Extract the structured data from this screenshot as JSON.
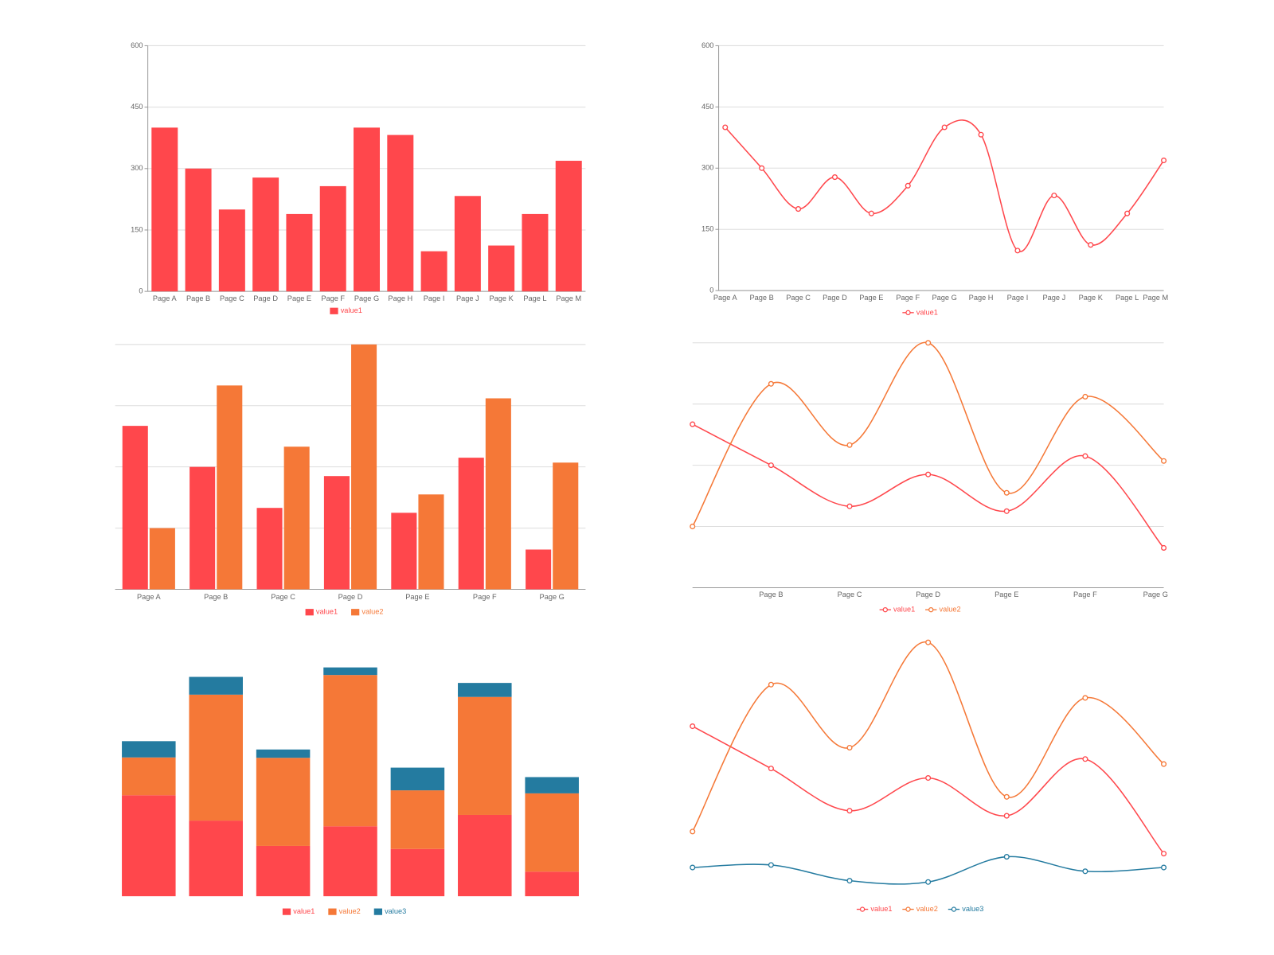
{
  "chart_data": [
    {
      "type": "bar",
      "categories": [
        "Page A",
        "Page B",
        "Page C",
        "Page D",
        "Page E",
        "Page F",
        "Page G",
        "Page H",
        "Page I",
        "Page J",
        "Page K",
        "Page L",
        "Page M"
      ],
      "series": [
        {
          "name": "value1",
          "color": "#ff474c",
          "values": [
            400,
            300,
            200,
            278,
            189,
            257,
            400,
            382,
            98,
            233,
            112,
            189,
            319
          ]
        }
      ],
      "ylim": [
        0,
        600
      ],
      "yticks": [
        0,
        150,
        300,
        450,
        600
      ],
      "grid": true,
      "tick_labels": true
    },
    {
      "type": "bar",
      "categories": [
        "Page A",
        "Page B",
        "Page C",
        "Page D",
        "Page E",
        "Page F",
        "Page G"
      ],
      "series": [
        {
          "name": "value1",
          "color": "#ff474c",
          "values": [
            267,
            200,
            133,
            185,
            125,
            215,
            65
          ]
        },
        {
          "name": "value2",
          "color": "#f57837",
          "values": [
            100,
            333,
            233,
            400,
            155,
            312,
            207
          ]
        }
      ],
      "ylim": [
        0,
        400
      ],
      "yticks": [
        0,
        100,
        200,
        300,
        400
      ],
      "grid": true,
      "tick_labels": false
    },
    {
      "type": "bar",
      "stacked": true,
      "series": [
        {
          "name": "value1",
          "color": "#ff474c",
          "values": [
            267,
            200,
            133,
            185,
            125,
            215,
            65
          ]
        },
        {
          "name": "value2",
          "color": "#f57837",
          "values": [
            100,
            333,
            233,
            400,
            155,
            312,
            207
          ]
        },
        {
          "name": "value3",
          "color": "#247ba0",
          "values": [
            43,
            47,
            22,
            20,
            60,
            37,
            43
          ]
        }
      ],
      "ylim": [
        0,
        600
      ]
    },
    {
      "type": "line",
      "categories": [
        "Page A",
        "Page B",
        "Page C",
        "Page D",
        "Page E",
        "Page F",
        "Page G",
        "Page H",
        "Page I",
        "Page J",
        "Page K",
        "Page L",
        "Page M"
      ],
      "series": [
        {
          "name": "value1",
          "color": "#ff474c",
          "values": [
            400,
            300,
            200,
            278,
            189,
            257,
            400,
            382,
            98,
            233,
            112,
            189,
            319
          ]
        }
      ],
      "ylim": [
        0,
        600
      ],
      "yticks": [
        0,
        150,
        300,
        450,
        600
      ],
      "grid": true,
      "tick_labels": true
    },
    {
      "type": "line",
      "categories": [
        null,
        "Page B",
        "Page C",
        "Page D",
        "Page E",
        "Page F",
        "Page G"
      ],
      "series": [
        {
          "name": "value1",
          "color": "#ff474c",
          "values": [
            267,
            200,
            133,
            185,
            125,
            215,
            65
          ]
        },
        {
          "name": "value2",
          "color": "#f57837",
          "values": [
            100,
            333,
            233,
            400,
            155,
            312,
            207
          ]
        }
      ],
      "ylim": [
        0,
        400
      ],
      "yticks": [
        0,
        100,
        200,
        300,
        400
      ],
      "grid": true,
      "tick_labels": false
    },
    {
      "type": "line",
      "series": [
        {
          "name": "value1",
          "color": "#ff474c",
          "values": [
            267,
            200,
            133,
            185,
            125,
            215,
            65
          ]
        },
        {
          "name": "value2",
          "color": "#f57837",
          "values": [
            100,
            333,
            233,
            400,
            155,
            312,
            207
          ]
        },
        {
          "name": "value3",
          "color": "#247ba0",
          "values": [
            43,
            47,
            22,
            20,
            60,
            37,
            43
          ]
        }
      ],
      "ylim": [
        0,
        400
      ]
    }
  ]
}
